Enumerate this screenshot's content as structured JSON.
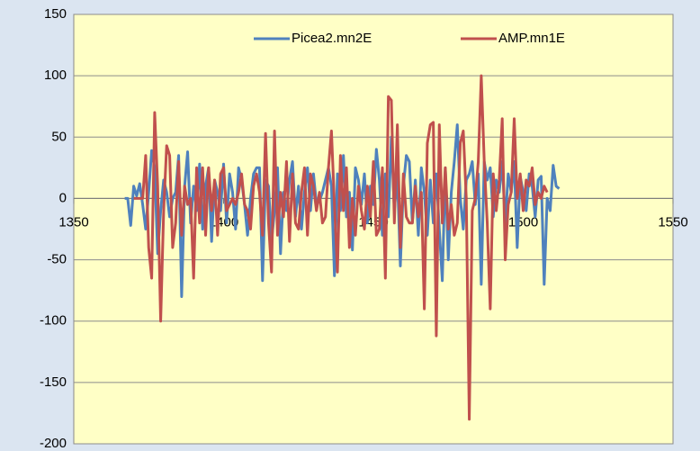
{
  "chart_data": {
    "type": "line",
    "x": [
      1367,
      1368,
      1369,
      1370,
      1371,
      1372,
      1373,
      1374,
      1375,
      1376,
      1377,
      1378,
      1379,
      1380,
      1381,
      1382,
      1383,
      1384,
      1385,
      1386,
      1387,
      1388,
      1389,
      1390,
      1391,
      1392,
      1393,
      1394,
      1395,
      1396,
      1397,
      1398,
      1399,
      1400,
      1401,
      1402,
      1403,
      1404,
      1405,
      1406,
      1407,
      1408,
      1409,
      1410,
      1411,
      1412,
      1413,
      1414,
      1415,
      1416,
      1417,
      1418,
      1419,
      1420,
      1421,
      1422,
      1423,
      1424,
      1425,
      1426,
      1427,
      1428,
      1429,
      1430,
      1431,
      1432,
      1433,
      1434,
      1435,
      1436,
      1437,
      1438,
      1439,
      1440,
      1441,
      1442,
      1443,
      1444,
      1445,
      1446,
      1447,
      1448,
      1449,
      1450,
      1451,
      1452,
      1453,
      1454,
      1455,
      1456,
      1457,
      1458,
      1459,
      1460,
      1461,
      1462,
      1463,
      1464,
      1465,
      1466,
      1467,
      1468,
      1469,
      1470,
      1471,
      1472,
      1473,
      1474,
      1475,
      1476,
      1477,
      1478,
      1479,
      1480,
      1481,
      1482,
      1483,
      1484,
      1485,
      1486,
      1487,
      1488,
      1489,
      1490,
      1491,
      1492,
      1493,
      1494,
      1495,
      1496,
      1497,
      1498,
      1499,
      1500,
      1501,
      1502,
      1503,
      1504,
      1505,
      1506,
      1507,
      1508,
      1509,
      1510,
      1511,
      1512
    ],
    "series": [
      {
        "name": "Picea2.mn2E",
        "color": "#4f81bd",
        "values": [
          0,
          0,
          -22,
          10,
          2,
          12,
          -5,
          -25,
          5,
          39,
          25,
          -45,
          -10,
          15,
          5,
          -15,
          0,
          5,
          35,
          -80,
          10,
          38,
          -20,
          10,
          -10,
          28,
          -25,
          10,
          25,
          -35,
          15,
          5,
          -10,
          28,
          -20,
          20,
          5,
          -25,
          25,
          15,
          -5,
          -30,
          0,
          20,
          25,
          25,
          -67,
          15,
          10,
          -35,
          -10,
          25,
          -45,
          5,
          -10,
          15,
          30,
          -15,
          10,
          -25,
          5,
          25,
          -10,
          20,
          -5,
          -2,
          5,
          15,
          25,
          10,
          -63,
          20,
          -10,
          35,
          -15,
          5,
          -42,
          25,
          15,
          -5,
          20,
          -20,
          10,
          -5,
          40,
          15,
          -30,
          20,
          -15,
          50,
          -10,
          20,
          -55,
          10,
          35,
          30,
          -20,
          15,
          -30,
          25,
          5,
          -30,
          15,
          -20,
          20,
          -25,
          -67,
          25,
          -50,
          5,
          30,
          60,
          0,
          -25,
          15,
          20,
          30,
          -5,
          20,
          -70,
          30,
          15,
          25,
          -15,
          15,
          5,
          30,
          -20,
          20,
          5,
          30,
          -40,
          18,
          5,
          -10,
          20,
          10,
          -15,
          15,
          18,
          -70,
          0,
          -10,
          27,
          10,
          8
        ]
      },
      {
        "name": "AMP.mn1E",
        "color": "#c0504d",
        "values": [
          null,
          null,
          null,
          0,
          0,
          0,
          0,
          35,
          -40,
          -65,
          70,
          10,
          -100,
          -10,
          43,
          35,
          -40,
          -20,
          30,
          -30,
          10,
          -5,
          0,
          -65,
          25,
          -20,
          25,
          -30,
          25,
          -10,
          15,
          -30,
          20,
          25,
          -10,
          -5,
          0,
          -5,
          5,
          20,
          -5,
          -10,
          -25,
          10,
          20,
          5,
          -30,
          53,
          -20,
          -60,
          55,
          -30,
          5,
          -15,
          30,
          -35,
          20,
          -20,
          -25,
          5,
          25,
          -30,
          20,
          10,
          -10,
          5,
          -20,
          -15,
          25,
          55,
          -5,
          -60,
          35,
          -10,
          25,
          -40,
          0,
          -30,
          10,
          -10,
          -25,
          10,
          -15,
          30,
          -30,
          -25,
          25,
          -65,
          83,
          80,
          -20,
          60,
          -40,
          20,
          -15,
          -20,
          -20,
          10,
          -15,
          5,
          -90,
          45,
          60,
          62,
          -112,
          60,
          -20,
          25,
          -25,
          -5,
          -30,
          -20,
          45,
          55,
          0,
          -180,
          -10,
          0,
          30,
          100,
          30,
          -20,
          -90,
          20,
          -10,
          15,
          65,
          -50,
          -5,
          5,
          65,
          0,
          20,
          -10,
          15,
          10,
          25,
          -5,
          5,
          0,
          10,
          5,
          null,
          null,
          null,
          null
        ]
      }
    ],
    "xlim": [
      1350,
      1550
    ],
    "xticks": [
      1350,
      1400,
      1450,
      1500,
      1550
    ],
    "ylim": [
      -200,
      150
    ],
    "yticks": [
      -200,
      -150,
      -100,
      -50,
      0,
      50,
      100,
      150
    ],
    "grid": true,
    "legend": "top"
  }
}
